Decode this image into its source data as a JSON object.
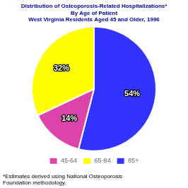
{
  "chart_data": {
    "type": "pie",
    "title": [
      "Distribution of Osteoporosis-Related Hospitalizations*",
      "By Age of Patient",
      "West Virginia Residents Aged 45 and Older, 1996"
    ],
    "annotations": [
      "*Estimates derived using National Osteoporosis\nFoundation methodology."
    ],
    "categories": [
      "85+",
      "45-64",
      "65-84"
    ],
    "values": [
      54,
      14,
      32
    ],
    "value_labels": [
      "54%",
      "14%",
      "32%"
    ],
    "colors": [
      "#3333ff",
      "#dd44aa",
      "#ffff00"
    ],
    "data_labels": true,
    "legend": "bottom"
  }
}
